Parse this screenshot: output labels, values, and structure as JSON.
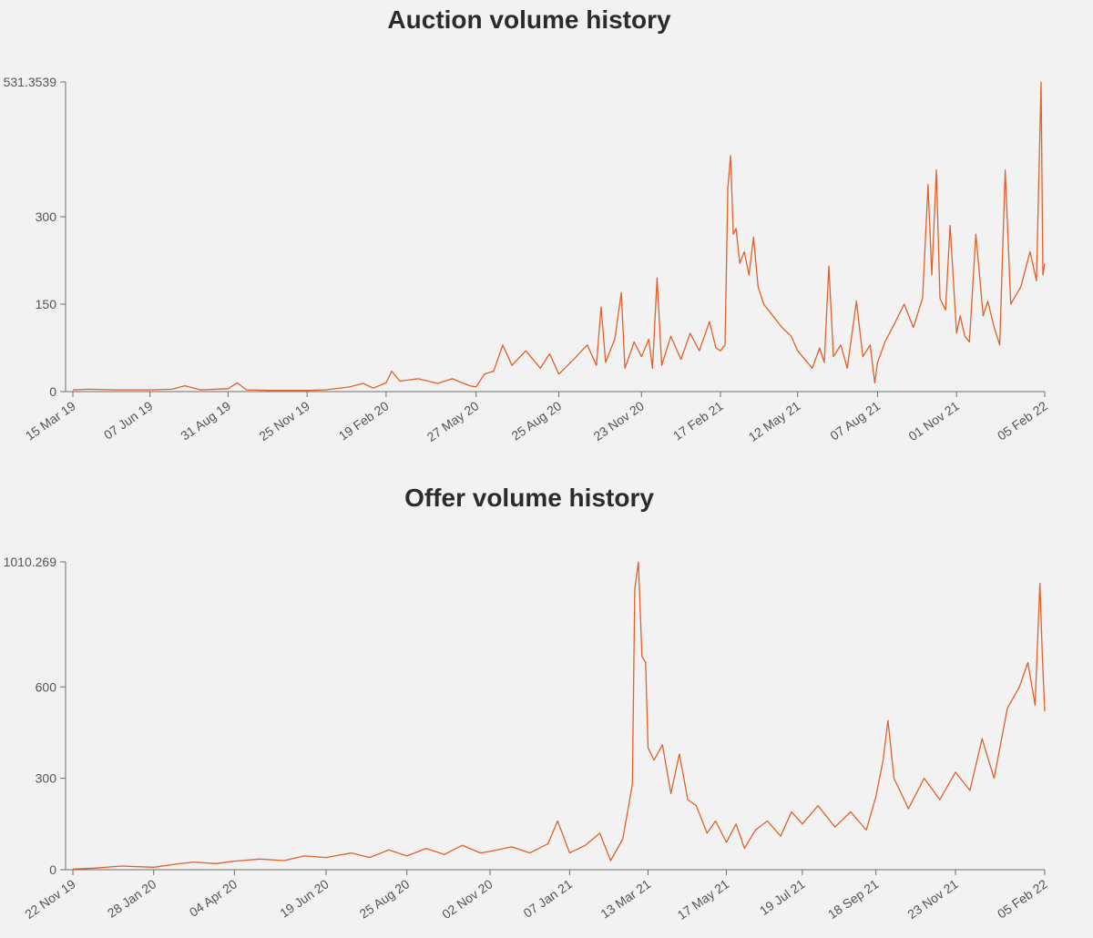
{
  "chart_data": [
    {
      "type": "line",
      "title": "Auction volume history",
      "xlabel": "",
      "ylabel": "",
      "ylim": [
        0,
        531.3539
      ],
      "x_range": [
        "2019-03-15",
        "2022-02-05"
      ],
      "x_ticks": [
        "15 Mar 19",
        "07 Jun 19",
        "31 Aug 19",
        "25 Nov 19",
        "19 Feb 20",
        "27 May 20",
        "25 Aug 20",
        "23 Nov 20",
        "17 Feb 21",
        "12 May 21",
        "07 Aug 21",
        "01 Nov 21",
        "05 Feb 22"
      ],
      "y_ticks": [
        "0",
        "150",
        "300",
        "531.3539"
      ],
      "y_tick_values": [
        0,
        150,
        300,
        531.3539
      ],
      "grid": false,
      "series": [
        {
          "color": "#e0612a",
          "points": [
            [
              "2019-03-15",
              3
            ],
            [
              "2019-04-01",
              4
            ],
            [
              "2019-05-01",
              3
            ],
            [
              "2019-06-07",
              3
            ],
            [
              "2019-07-01",
              4
            ],
            [
              "2019-07-15",
              10
            ],
            [
              "2019-08-01",
              3
            ],
            [
              "2019-08-31",
              5
            ],
            [
              "2019-09-10",
              15
            ],
            [
              "2019-09-20",
              3
            ],
            [
              "2019-10-15",
              2
            ],
            [
              "2019-11-25",
              2
            ],
            [
              "2019-12-15",
              3
            ],
            [
              "2020-01-10",
              8
            ],
            [
              "2020-01-25",
              14
            ],
            [
              "2020-02-05",
              6
            ],
            [
              "2020-02-19",
              15
            ],
            [
              "2020-02-25",
              35
            ],
            [
              "2020-03-05",
              18
            ],
            [
              "2020-03-25",
              22
            ],
            [
              "2020-04-15",
              14
            ],
            [
              "2020-05-01",
              22
            ],
            [
              "2020-05-20",
              10
            ],
            [
              "2020-05-27",
              8
            ],
            [
              "2020-06-05",
              30
            ],
            [
              "2020-06-15",
              35
            ],
            [
              "2020-06-25",
              80
            ],
            [
              "2020-07-05",
              45
            ],
            [
              "2020-07-20",
              70
            ],
            [
              "2020-08-05",
              40
            ],
            [
              "2020-08-15",
              65
            ],
            [
              "2020-08-25",
              30
            ],
            [
              "2020-09-10",
              55
            ],
            [
              "2020-09-25",
              80
            ],
            [
              "2020-10-05",
              45
            ],
            [
              "2020-10-10",
              145
            ],
            [
              "2020-10-15",
              50
            ],
            [
              "2020-10-25",
              90
            ],
            [
              "2020-11-01",
              170
            ],
            [
              "2020-11-05",
              40
            ],
            [
              "2020-11-15",
              85
            ],
            [
              "2020-11-23",
              60
            ],
            [
              "2020-12-01",
              90
            ],
            [
              "2020-12-05",
              40
            ],
            [
              "2020-12-10",
              195
            ],
            [
              "2020-12-15",
              45
            ],
            [
              "2020-12-25",
              95
            ],
            [
              "2021-01-05",
              55
            ],
            [
              "2021-01-15",
              100
            ],
            [
              "2021-01-25",
              70
            ],
            [
              "2021-02-05",
              120
            ],
            [
              "2021-02-12",
              75
            ],
            [
              "2021-02-17",
              70
            ],
            [
              "2021-02-22",
              80
            ],
            [
              "2021-02-25",
              350
            ],
            [
              "2021-02-28",
              405
            ],
            [
              "2021-03-03",
              270
            ],
            [
              "2021-03-06",
              280
            ],
            [
              "2021-03-10",
              220
            ],
            [
              "2021-03-15",
              240
            ],
            [
              "2021-03-20",
              200
            ],
            [
              "2021-03-25",
              265
            ],
            [
              "2021-03-30",
              180
            ],
            [
              "2021-04-05",
              150
            ],
            [
              "2021-04-15",
              130
            ],
            [
              "2021-04-25",
              110
            ],
            [
              "2021-05-05",
              95
            ],
            [
              "2021-05-12",
              70
            ],
            [
              "2021-05-20",
              55
            ],
            [
              "2021-05-28",
              40
            ],
            [
              "2021-06-05",
              75
            ],
            [
              "2021-06-10",
              50
            ],
            [
              "2021-06-15",
              215
            ],
            [
              "2021-06-20",
              60
            ],
            [
              "2021-06-28",
              80
            ],
            [
              "2021-07-05",
              40
            ],
            [
              "2021-07-15",
              155
            ],
            [
              "2021-07-22",
              60
            ],
            [
              "2021-07-30",
              80
            ],
            [
              "2021-08-04",
              15
            ],
            [
              "2021-08-07",
              50
            ],
            [
              "2021-08-15",
              85
            ],
            [
              "2021-08-25",
              115
            ],
            [
              "2021-09-05",
              150
            ],
            [
              "2021-09-15",
              110
            ],
            [
              "2021-09-25",
              160
            ],
            [
              "2021-10-01",
              355
            ],
            [
              "2021-10-05",
              200
            ],
            [
              "2021-10-10",
              380
            ],
            [
              "2021-10-14",
              160
            ],
            [
              "2021-10-20",
              140
            ],
            [
              "2021-10-25",
              285
            ],
            [
              "2021-11-01",
              100
            ],
            [
              "2021-11-05",
              130
            ],
            [
              "2021-11-10",
              95
            ],
            [
              "2021-11-15",
              85
            ],
            [
              "2021-11-22",
              270
            ],
            [
              "2021-11-30",
              130
            ],
            [
              "2021-12-05",
              155
            ],
            [
              "2021-12-12",
              110
            ],
            [
              "2021-12-18",
              80
            ],
            [
              "2021-12-24",
              380
            ],
            [
              "2021-12-30",
              150
            ],
            [
              "2022-01-10",
              180
            ],
            [
              "2022-01-20",
              240
            ],
            [
              "2022-01-27",
              190
            ],
            [
              "2022-02-01",
              531
            ],
            [
              "2022-02-03",
              200
            ],
            [
              "2022-02-05",
              220
            ]
          ]
        }
      ]
    },
    {
      "type": "line",
      "title": "Offer volume history",
      "xlabel": "",
      "ylabel": "",
      "ylim": [
        0,
        1010.269
      ],
      "x_range": [
        "2019-11-22",
        "2022-02-05"
      ],
      "x_ticks": [
        "22 Nov 19",
        "28 Jan 20",
        "04 Apr 20",
        "19 Jun 20",
        "25 Aug 20",
        "02 Nov 20",
        "07 Jan 21",
        "13 Mar 21",
        "17 May 21",
        "19 Jul 21",
        "18 Sep 21",
        "23 Nov 21",
        "05 Feb 22"
      ],
      "y_ticks": [
        "0",
        "300",
        "600",
        "1010.269"
      ],
      "y_tick_values": [
        0,
        300,
        600,
        1010.269
      ],
      "grid": false,
      "series": [
        {
          "color": "#e0612a",
          "points": [
            [
              "2019-11-22",
              2
            ],
            [
              "2019-12-10",
              5
            ],
            [
              "2020-01-01",
              12
            ],
            [
              "2020-01-28",
              8
            ],
            [
              "2020-02-15",
              18
            ],
            [
              "2020-03-01",
              25
            ],
            [
              "2020-03-20",
              20
            ],
            [
              "2020-04-04",
              28
            ],
            [
              "2020-04-25",
              35
            ],
            [
              "2020-05-15",
              30
            ],
            [
              "2020-06-01",
              45
            ],
            [
              "2020-06-19",
              40
            ],
            [
              "2020-07-10",
              55
            ],
            [
              "2020-07-25",
              40
            ],
            [
              "2020-08-10",
              65
            ],
            [
              "2020-08-25",
              45
            ],
            [
              "2020-09-10",
              70
            ],
            [
              "2020-09-25",
              50
            ],
            [
              "2020-10-10",
              80
            ],
            [
              "2020-10-25",
              55
            ],
            [
              "2020-11-02",
              60
            ],
            [
              "2020-11-20",
              75
            ],
            [
              "2020-12-05",
              55
            ],
            [
              "2020-12-20",
              85
            ],
            [
              "2020-12-28",
              160
            ],
            [
              "2021-01-07",
              55
            ],
            [
              "2021-01-20",
              80
            ],
            [
              "2021-02-01",
              120
            ],
            [
              "2021-02-10",
              30
            ],
            [
              "2021-02-20",
              100
            ],
            [
              "2021-02-28",
              280
            ],
            [
              "2021-03-02",
              920
            ],
            [
              "2021-03-05",
              1010
            ],
            [
              "2021-03-08",
              700
            ],
            [
              "2021-03-11",
              680
            ],
            [
              "2021-03-13",
              400
            ],
            [
              "2021-03-18",
              360
            ],
            [
              "2021-03-25",
              410
            ],
            [
              "2021-04-01",
              250
            ],
            [
              "2021-04-08",
              380
            ],
            [
              "2021-04-15",
              230
            ],
            [
              "2021-04-22",
              210
            ],
            [
              "2021-05-01",
              120
            ],
            [
              "2021-05-08",
              160
            ],
            [
              "2021-05-17",
              90
            ],
            [
              "2021-05-25",
              150
            ],
            [
              "2021-06-01",
              70
            ],
            [
              "2021-06-10",
              130
            ],
            [
              "2021-06-20",
              160
            ],
            [
              "2021-07-01",
              110
            ],
            [
              "2021-07-10",
              190
            ],
            [
              "2021-07-19",
              150
            ],
            [
              "2021-08-01",
              210
            ],
            [
              "2021-08-15",
              140
            ],
            [
              "2021-08-28",
              190
            ],
            [
              "2021-09-10",
              130
            ],
            [
              "2021-09-18",
              240
            ],
            [
              "2021-09-24",
              360
            ],
            [
              "2021-09-28",
              490
            ],
            [
              "2021-10-03",
              300
            ],
            [
              "2021-10-15",
              200
            ],
            [
              "2021-10-28",
              300
            ],
            [
              "2021-11-10",
              230
            ],
            [
              "2021-11-23",
              320
            ],
            [
              "2021-12-05",
              260
            ],
            [
              "2021-12-15",
              430
            ],
            [
              "2021-12-25",
              300
            ],
            [
              "2022-01-05",
              530
            ],
            [
              "2022-01-15",
              600
            ],
            [
              "2022-01-22",
              680
            ],
            [
              "2022-01-28",
              540
            ],
            [
              "2022-02-01",
              940
            ],
            [
              "2022-02-03",
              700
            ],
            [
              "2022-02-05",
              520
            ]
          ]
        }
      ]
    }
  ]
}
